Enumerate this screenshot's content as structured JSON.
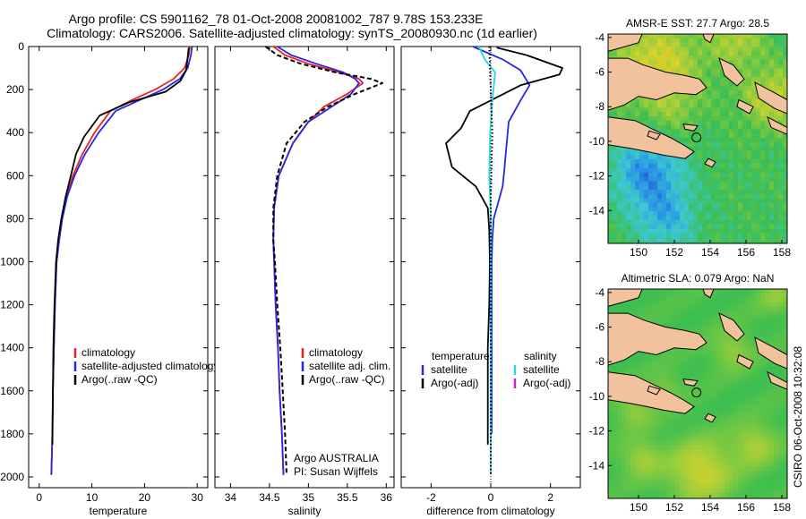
{
  "header": {
    "title_line1": "Argo profile: CS 5901162_78 01-Oct-2008 20081002_787 9.78S 153.233E",
    "title_line2": "Climatology: CARS2006. Satellite-adjusted climatology: synTS_20080930.nc (1d earlier)"
  },
  "side_label": "CSIRO 06-Oct-2008 10:32:08",
  "colors": {
    "climatology": "#e8231f",
    "satellite": "#2626e6",
    "argo": "#000000",
    "sat_salinity": "#22d8e8",
    "argo_adj_sal": "#d020c8",
    "land": "#f2c29c"
  },
  "chart_data": [
    {
      "type": "line",
      "xlabel": "temperature",
      "ylabel": "",
      "xlim": [
        -2,
        32
      ],
      "ylim": [
        2050,
        0
      ],
      "xticks": [
        0,
        10,
        20,
        30
      ],
      "yticks": [
        0,
        200,
        400,
        600,
        800,
        1000,
        1200,
        1400,
        1600,
        1800,
        2000
      ],
      "legend": [
        "climatology",
        "satellite-adjusted climatology",
        "Argo(..raw -QC)"
      ],
      "legend_position": "lower-right",
      "series": [
        {
          "name": "climatology",
          "color": "#e8231f",
          "style": "solid",
          "x": [
            28.6,
            28.4,
            27.6,
            25.5,
            22.0,
            17.5,
            13.5,
            10.5,
            8.2,
            6.4,
            5.2,
            4.3,
            3.8,
            3.3,
            3.0,
            2.8,
            2.6,
            2.5,
            2.4,
            2.3
          ],
          "y": [
            0,
            40,
            100,
            150,
            200,
            250,
            300,
            400,
            500,
            600,
            700,
            800,
            900,
            1000,
            1200,
            1400,
            1600,
            1800,
            1900,
            1990
          ]
        },
        {
          "name": "satellite-adjusted climatology",
          "color": "#2626e6",
          "style": "solid",
          "x": [
            29.0,
            28.8,
            28.2,
            26.7,
            23.5,
            19.0,
            14.5,
            11.3,
            8.7,
            6.7,
            5.3,
            4.4,
            3.8,
            3.3,
            3.0,
            2.8,
            2.6,
            2.5,
            2.4,
            2.3
          ],
          "y": [
            0,
            40,
            100,
            150,
            200,
            250,
            300,
            400,
            500,
            600,
            700,
            800,
            900,
            1000,
            1200,
            1400,
            1600,
            1800,
            1900,
            1990
          ]
        },
        {
          "name": "Argo(..raw -QC)",
          "color": "#000000",
          "style": "solid",
          "x": [
            28.4,
            28.2,
            27.9,
            26.8,
            24.0,
            17.0,
            11.5,
            8.5,
            7.0,
            6.0,
            5.0,
            4.2,
            3.6,
            3.2,
            2.9,
            2.7,
            2.6,
            2.5
          ],
          "y": [
            5,
            50,
            110,
            160,
            210,
            260,
            320,
            420,
            500,
            600,
            700,
            800,
            900,
            1000,
            1200,
            1400,
            1600,
            1850
          ]
        }
      ]
    },
    {
      "type": "line",
      "xlabel": "salinity",
      "xlim": [
        33.8,
        36.1
      ],
      "ylim": [
        2050,
        0
      ],
      "xticks": [
        34,
        34.5,
        35,
        35.5,
        36
      ],
      "yticks": [
        0,
        200,
        400,
        600,
        800,
        1000,
        1200,
        1400,
        1600,
        1800,
        2000
      ],
      "legend": [
        "climatology",
        "satellite adj. clim.",
        "Argo(..raw -QC)"
      ],
      "legend_position": "lower-right",
      "annotation": [
        "Argo AUSTRALIA",
        "PI: Susan Wijffels"
      ],
      "series": [
        {
          "name": "climatology",
          "color": "#e8231f",
          "style": "solid",
          "x": [
            34.55,
            34.7,
            35.0,
            35.4,
            35.65,
            35.7,
            35.5,
            35.2,
            35.0,
            34.8,
            34.62,
            34.56,
            34.55,
            34.56,
            34.58,
            34.61,
            34.63,
            34.66,
            34.68
          ],
          "y": [
            0,
            40,
            80,
            120,
            150,
            170,
            220,
            280,
            350,
            450,
            600,
            750,
            900,
            1000,
            1200,
            1400,
            1600,
            1800,
            1990
          ]
        },
        {
          "name": "satellite adj. clim.",
          "color": "#2626e6",
          "style": "solid",
          "x": [
            34.6,
            34.78,
            35.1,
            35.45,
            35.6,
            35.65,
            35.55,
            35.3,
            35.0,
            34.8,
            34.62,
            34.56,
            34.55,
            34.56,
            34.58,
            34.61,
            34.63,
            34.66,
            34.68
          ],
          "y": [
            0,
            40,
            80,
            120,
            150,
            170,
            220,
            280,
            350,
            450,
            600,
            750,
            900,
            1000,
            1200,
            1400,
            1600,
            1800,
            1990
          ]
        },
        {
          "name": "Argo(..raw -QC)",
          "color": "#000000",
          "style": "dashed",
          "x": [
            34.45,
            34.6,
            34.9,
            35.35,
            35.8,
            35.95,
            35.6,
            35.25,
            34.95,
            34.72,
            34.6,
            34.55,
            34.55,
            34.57,
            34.6,
            34.64,
            34.67,
            34.7,
            34.72
          ],
          "y": [
            0,
            40,
            80,
            120,
            150,
            170,
            220,
            280,
            350,
            450,
            600,
            750,
            900,
            1000,
            1200,
            1400,
            1600,
            1800,
            1990
          ]
        }
      ]
    },
    {
      "type": "line",
      "xlabel": "difference from climatology",
      "xlim": [
        -3,
        3
      ],
      "ylim": [
        2050,
        0
      ],
      "xticks": [
        -2,
        0,
        2
      ],
      "yticks": [
        0,
        200,
        400,
        600,
        800,
        1000,
        1200,
        1400,
        1600,
        1800,
        2000
      ],
      "legend_groups": [
        {
          "heading": "temperature",
          "entries": [
            "satellite",
            "Argo(-adj)"
          ]
        },
        {
          "heading": "salinity",
          "entries": [
            "satellite",
            "Argo(-adj)"
          ]
        }
      ],
      "legend_position": "lower",
      "series": [
        {
          "name": "temperature satellite",
          "color": "#2626e6",
          "style": "solid",
          "x": [
            -0.6,
            0.4,
            1.0,
            1.3,
            1.0,
            0.6,
            0.5,
            0.45,
            0.4,
            0.3,
            0.1,
            0.05,
            0.03,
            0.03,
            0.03,
            0.03,
            0.03
          ],
          "y": [
            0,
            60,
            110,
            180,
            250,
            350,
            500,
            580,
            650,
            700,
            800,
            900,
            1000,
            1200,
            1400,
            1600,
            1800
          ]
        },
        {
          "name": "temperature Argo(-adj)",
          "color": "#000000",
          "style": "solid",
          "x": [
            0.2,
            1.2,
            2.4,
            2.3,
            1.0,
            -0.7,
            -1.0,
            -1.5,
            -1.3,
            -0.5,
            -0.1,
            -0.05,
            -0.03,
            -0.05,
            -0.1,
            -0.1,
            -0.1
          ],
          "y": [
            5,
            40,
            100,
            130,
            180,
            300,
            380,
            450,
            560,
            650,
            750,
            850,
            1000,
            1200,
            1400,
            1600,
            1850
          ]
        },
        {
          "name": "salinity satellite",
          "color": "#22d8e8",
          "style": "solid",
          "x": [
            -0.4,
            -0.2,
            0.15,
            0.05,
            -0.02,
            -0.05,
            0.0,
            0.0,
            0.0,
            0.0,
            0.0
          ],
          "y": [
            0,
            60,
            120,
            250,
            400,
            600,
            800,
            1000,
            1300,
            1600,
            1990
          ]
        },
        {
          "name": "salinity Argo(-adj)",
          "color": "#000000",
          "style": "dotted",
          "x": [
            -0.05,
            0.0,
            0.05,
            0.0,
            0.0,
            0.0,
            0.0
          ],
          "y": [
            0,
            200,
            400,
            700,
            1000,
            1500,
            1990
          ]
        }
      ]
    },
    {
      "type": "heatmap",
      "title": "AMSR-E SST: 27.7 Argo: 28.5",
      "xlim": [
        148.3,
        158.3
      ],
      "ylim": [
        -15.9,
        -3.8
      ],
      "xticks": [
        150,
        152,
        154,
        156,
        158
      ],
      "yticks": [
        -4,
        -6,
        -8,
        -10,
        -12,
        -14
      ],
      "marker": {
        "lon": 153.233,
        "lat": -9.78
      }
    },
    {
      "type": "heatmap",
      "title": "Altimetric SLA: 0.079 Argo: NaN",
      "xlim": [
        148.3,
        158.3
      ],
      "ylim": [
        -15.9,
        -3.8
      ],
      "xticks": [
        150,
        152,
        154,
        156,
        158
      ],
      "yticks": [
        -4,
        -6,
        -8,
        -10,
        -12,
        -14
      ],
      "marker": {
        "lon": 153.233,
        "lat": -9.78
      }
    }
  ]
}
